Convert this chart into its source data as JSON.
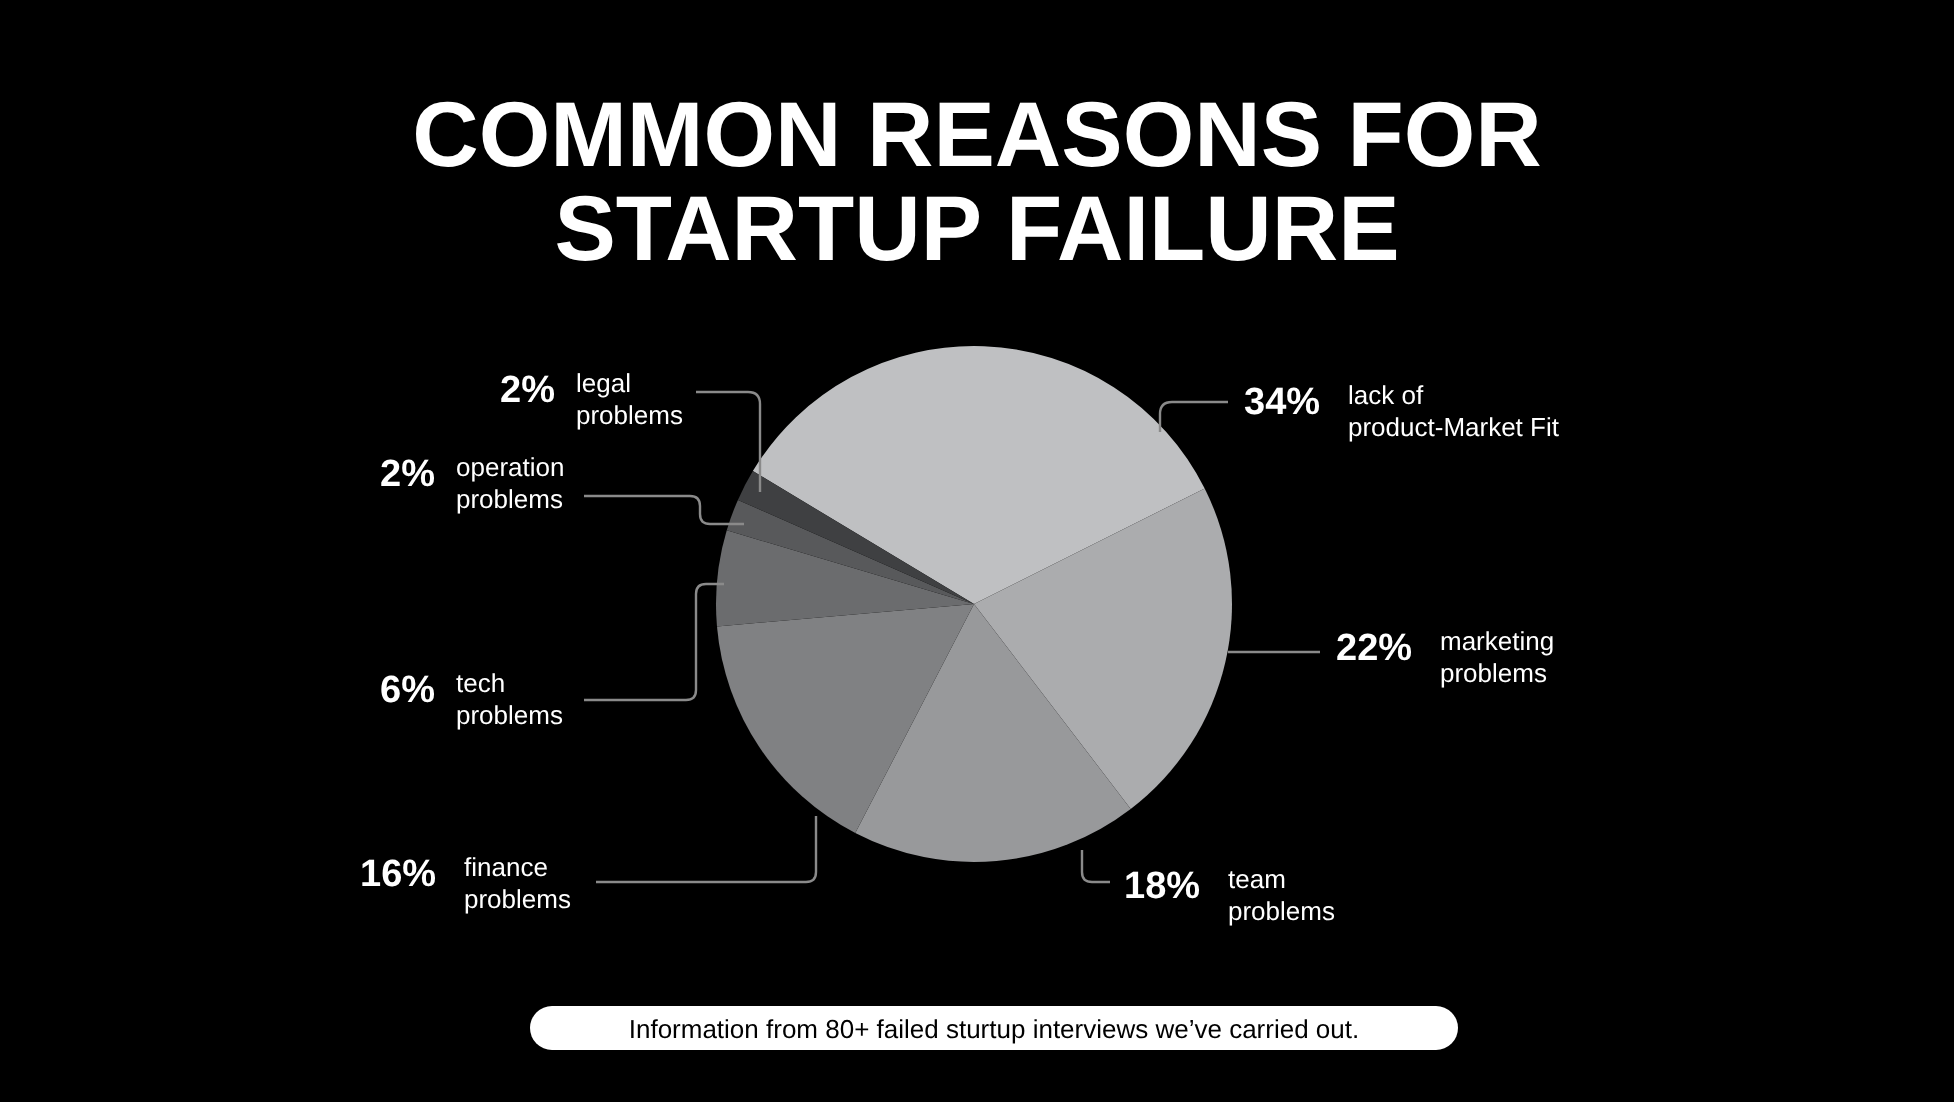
{
  "chart_data": {
    "type": "pie",
    "title": "COMMON REASONS FOR\nSTARTUP FAILURE",
    "categories": [
      "lack of\nproduct-Market Fit",
      "marketing\nproblems",
      "team\nproblems",
      "finance\nproblems",
      "tech\nproblems",
      "operation\nproblems",
      "legal\nproblems"
    ],
    "values": [
      34,
      22,
      18,
      16,
      6,
      2,
      2
    ],
    "value_labels": [
      "34%",
      "22%",
      "18%",
      "16%",
      "6%",
      "2%",
      "2%"
    ],
    "colors": [
      "#bfc0c2",
      "#abacae",
      "#98999b",
      "#808183",
      "#6b6c6e",
      "#58595b",
      "#3f4042"
    ],
    "annotations": [
      "Information from 80+ failed sturtup interviews we’ve carried out."
    ]
  }
}
